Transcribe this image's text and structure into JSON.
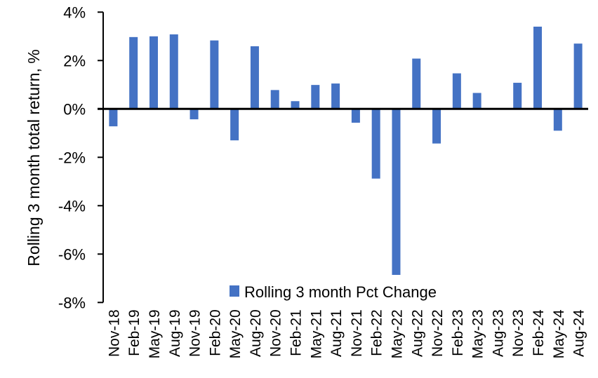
{
  "chart_data": {
    "type": "bar",
    "title": "",
    "xlabel": "",
    "ylabel": "Rolling 3 month total return, %",
    "ylim": [
      -8,
      4
    ],
    "yticks": [
      "-8%",
      "-6%",
      "-4%",
      "-2%",
      "0%",
      "2%",
      "4%"
    ],
    "ytick_values": [
      -8,
      -6,
      -4,
      -2,
      0,
      2,
      4
    ],
    "grid": false,
    "legend": "bottom-center",
    "color": "#4472C4",
    "categories": [
      "Nov-18",
      "Feb-19",
      "May-19",
      "Aug-19",
      "Nov-19",
      "Feb-20",
      "May-20",
      "Aug-20",
      "Nov-20",
      "Feb-21",
      "May-21",
      "Aug-21",
      "Nov-21",
      "Feb-22",
      "May-22",
      "Aug-22",
      "Nov-22",
      "Feb-23",
      "May-23",
      "Aug-23",
      "Nov-23",
      "Feb-24",
      "May-24",
      "Aug-24"
    ],
    "series": [
      {
        "name": "Rolling 3 month Pct Change",
        "values": [
          -0.72,
          2.97,
          3.0,
          3.08,
          -0.43,
          2.83,
          -1.3,
          2.59,
          0.78,
          0.32,
          0.99,
          1.05,
          -0.57,
          -2.88,
          -6.86,
          2.08,
          -1.43,
          1.47,
          0.66,
          0.0,
          1.08,
          3.4,
          -0.9,
          2.7
        ]
      }
    ]
  }
}
